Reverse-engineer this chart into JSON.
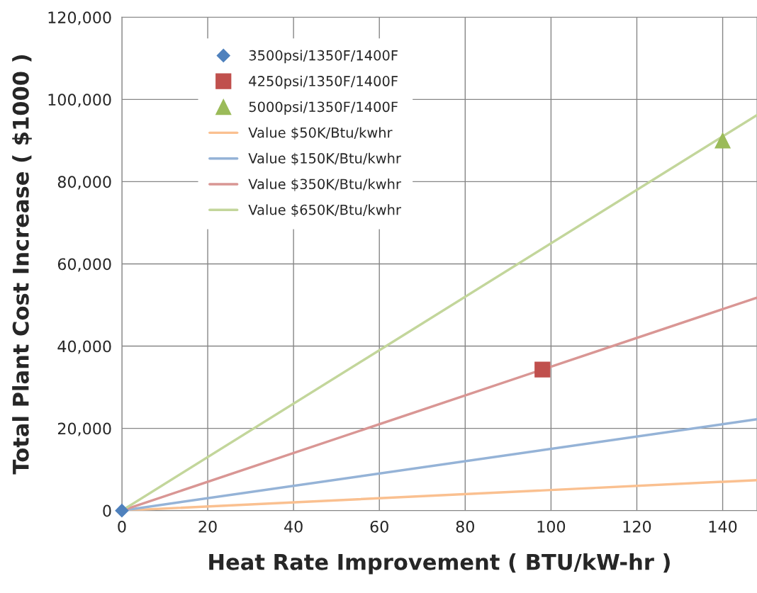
{
  "chart_data": {
    "type": "scatter",
    "xlabel": "Heat Rate Improvement ( BTU/kW-hr )",
    "ylabel": "Total Plant Cost Increase ( $1000 )",
    "series": [
      {
        "name": "3500psi/1350F/1400F",
        "marker": "diamond",
        "color": "#4f81bd",
        "x": [
          0
        ],
        "values": [
          0
        ]
      },
      {
        "name": "4250psi/1350F/1400F",
        "marker": "square",
        "color": "#c0504d",
        "x": [
          98
        ],
        "values": [
          34300
        ]
      },
      {
        "name": "5000psi/1350F/1400F",
        "marker": "triangle",
        "color": "#9bbb59",
        "x": [
          140
        ],
        "values": [
          90000
        ]
      },
      {
        "name": "Value $50K/Btu/kwhr",
        "type": "line",
        "marker": "none",
        "color": "#fac090",
        "x": [
          0,
          148
        ],
        "values": [
          0,
          7400
        ]
      },
      {
        "name": "Value $150K/Btu/kwhr",
        "type": "line",
        "marker": "none",
        "color": "#95b3d7",
        "x": [
          0,
          148
        ],
        "values": [
          0,
          22200
        ]
      },
      {
        "name": "Value $350K/Btu/kwhr",
        "type": "line",
        "marker": "none",
        "color": "#d99694",
        "x": [
          0,
          148
        ],
        "values": [
          0,
          51800
        ]
      },
      {
        "name": "Value $650K/Btu/kwhr",
        "type": "line",
        "marker": "none",
        "color": "#c3d69b",
        "x": [
          0,
          148
        ],
        "values": [
          0,
          96200
        ]
      }
    ],
    "xlim": [
      0,
      148
    ],
    "xticks": [
      0,
      20,
      40,
      60,
      80,
      100,
      120,
      140
    ],
    "ylim": [
      0,
      120000
    ],
    "yticks": [
      {
        "value": 0,
        "label": "0"
      },
      {
        "value": 20000,
        "label": "20,000"
      },
      {
        "value": 40000,
        "label": "40,000"
      },
      {
        "value": 60000,
        "label": "60,000"
      },
      {
        "value": 80000,
        "label": "80,000"
      },
      {
        "value": 100000,
        "label": "100,000"
      },
      {
        "value": 120000,
        "label": "120,000"
      }
    ],
    "grid": true,
    "legend": "top left"
  }
}
